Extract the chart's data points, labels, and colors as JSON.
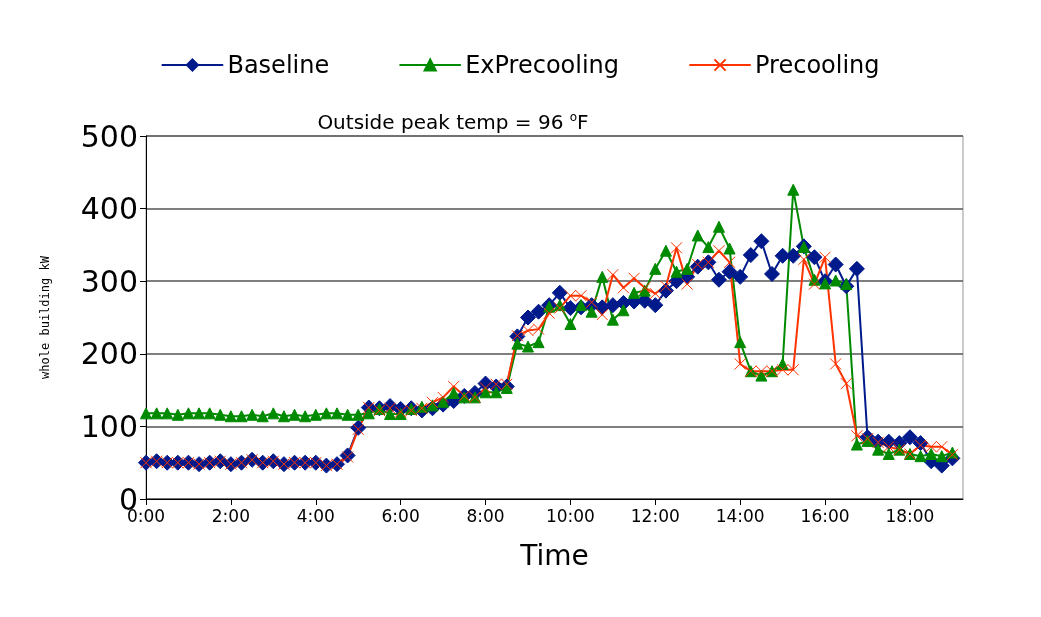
{
  "chart_data": {
    "type": "line",
    "title": "Outside peak temp = 96 $^{o}$F",
    "xlabel": "Time",
    "ylabel": "whole building kW",
    "x": [
      0,
      0.25,
      0.5,
      0.75,
      1,
      1.25,
      1.5,
      1.75,
      2,
      2.25,
      2.5,
      2.75,
      3,
      3.25,
      3.5,
      3.75,
      4,
      4.25,
      4.5,
      4.75,
      5,
      5.25,
      5.5,
      5.75,
      6,
      6.25,
      6.5,
      6.75,
      7,
      7.25,
      7.5,
      7.75,
      8,
      8.25,
      8.5,
      8.75,
      9,
      9.25,
      9.5,
      9.75,
      10,
      10.25,
      10.5,
      10.75,
      11,
      11.25,
      11.5,
      11.75,
      12,
      12.25,
      12.5,
      12.75,
      13,
      13.25,
      13.5,
      13.75,
      14,
      14.25,
      14.5,
      14.75,
      15,
      15.25,
      15.5,
      15.75,
      16,
      16.25,
      16.5,
      16.75,
      17,
      17.25,
      17.5,
      17.75,
      18,
      18.25,
      18.5,
      18.75,
      19
    ],
    "series": [
      {
        "name": "Baseline",
        "color": "#001a8c",
        "marker": "diamond",
        "values": [
          50,
          52,
          50,
          50,
          50,
          48,
          50,
          52,
          48,
          50,
          54,
          50,
          52,
          48,
          50,
          50,
          50,
          46,
          48,
          60,
          98,
          126,
          125,
          128,
          124,
          125,
          122,
          125,
          130,
          135,
          142,
          146,
          159,
          155,
          155,
          224,
          250,
          258,
          267,
          284,
          263,
          264,
          267,
          264,
          267,
          270,
          272,
          273,
          267,
          287,
          300,
          306,
          320,
          326,
          302,
          313,
          306,
          336,
          355,
          310,
          335,
          335,
          348,
          333,
          300,
          323,
          293,
          317,
          85,
          79,
          79,
          77,
          85,
          77,
          52,
          46,
          56
        ]
      },
      {
        "name": "ExPrecooling",
        "color": "#008a00",
        "marker": "triangle",
        "values": [
          118,
          118,
          118,
          116,
          118,
          118,
          118,
          116,
          114,
          114,
          116,
          114,
          118,
          114,
          116,
          114,
          116,
          118,
          118,
          116,
          116,
          118,
          124,
          117,
          117,
          124,
          127,
          129,
          134,
          146,
          140,
          140,
          147,
          147,
          153,
          214,
          210,
          216,
          265,
          267,
          241,
          267,
          258,
          306,
          247,
          260,
          284,
          287,
          317,
          342,
          313,
          317,
          363,
          347,
          375,
          345,
          216,
          176,
          170,
          176,
          186,
          426,
          347,
          302,
          297,
          301,
          296,
          75,
          80,
          68,
          62,
          68,
          62,
          59,
          62,
          59,
          64
        ]
      },
      {
        "name": "Precooling",
        "color": "#ff3300",
        "marker": "cross",
        "values": [
          50,
          52,
          50,
          50,
          50,
          48,
          50,
          52,
          48,
          50,
          54,
          50,
          52,
          48,
          50,
          50,
          50,
          46,
          48,
          58,
          96,
          126,
          122,
          125,
          120,
          122,
          125,
          133,
          140,
          155,
          142,
          140,
          153,
          158,
          158,
          225,
          232,
          234,
          256,
          263,
          280,
          280,
          271,
          254,
          309,
          291,
          304,
          291,
          283,
          293,
          346,
          296,
          323,
          326,
          342,
          326,
          186,
          176,
          176,
          176,
          178,
          178,
          330,
          296,
          333,
          186,
          159,
          87,
          83,
          78,
          72,
          68,
          62,
          74,
          72,
          72,
          61
        ]
      }
    ],
    "xlim": [
      0,
      19.25
    ],
    "xticks": [
      {
        "value": 0,
        "label": "0:00"
      },
      {
        "value": 2,
        "label": "2:00"
      },
      {
        "value": 4,
        "label": "4:00"
      },
      {
        "value": 6,
        "label": "6:00"
      },
      {
        "value": 8,
        "label": "8:00"
      },
      {
        "value": 10,
        "label": "10:00"
      },
      {
        "value": 12,
        "label": "12:00"
      },
      {
        "value": 14,
        "label": "14:00"
      },
      {
        "value": 16,
        "label": "16:00"
      },
      {
        "value": 18,
        "label": "18:00"
      }
    ],
    "ylim": [
      0,
      500
    ],
    "yticks": [
      0,
      100,
      200,
      300,
      400,
      500
    ],
    "grid": "y",
    "legend": "top"
  }
}
